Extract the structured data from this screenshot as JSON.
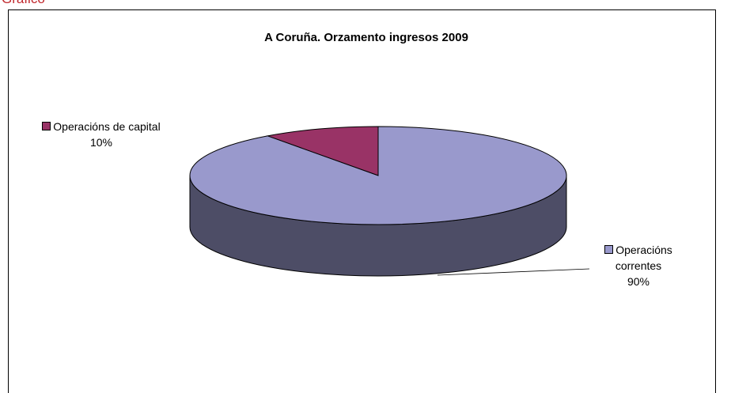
{
  "caption": "Gráfico",
  "chart_data": {
    "type": "pie",
    "title": "A Coruña. Orzamento ingresos 2009",
    "categories": [
      "Operacións de capital",
      "Operacións correntes"
    ],
    "values": [
      10,
      90
    ],
    "value_labels": [
      "10%",
      "90%"
    ],
    "colors": [
      "#993366",
      "#9999cc"
    ]
  }
}
